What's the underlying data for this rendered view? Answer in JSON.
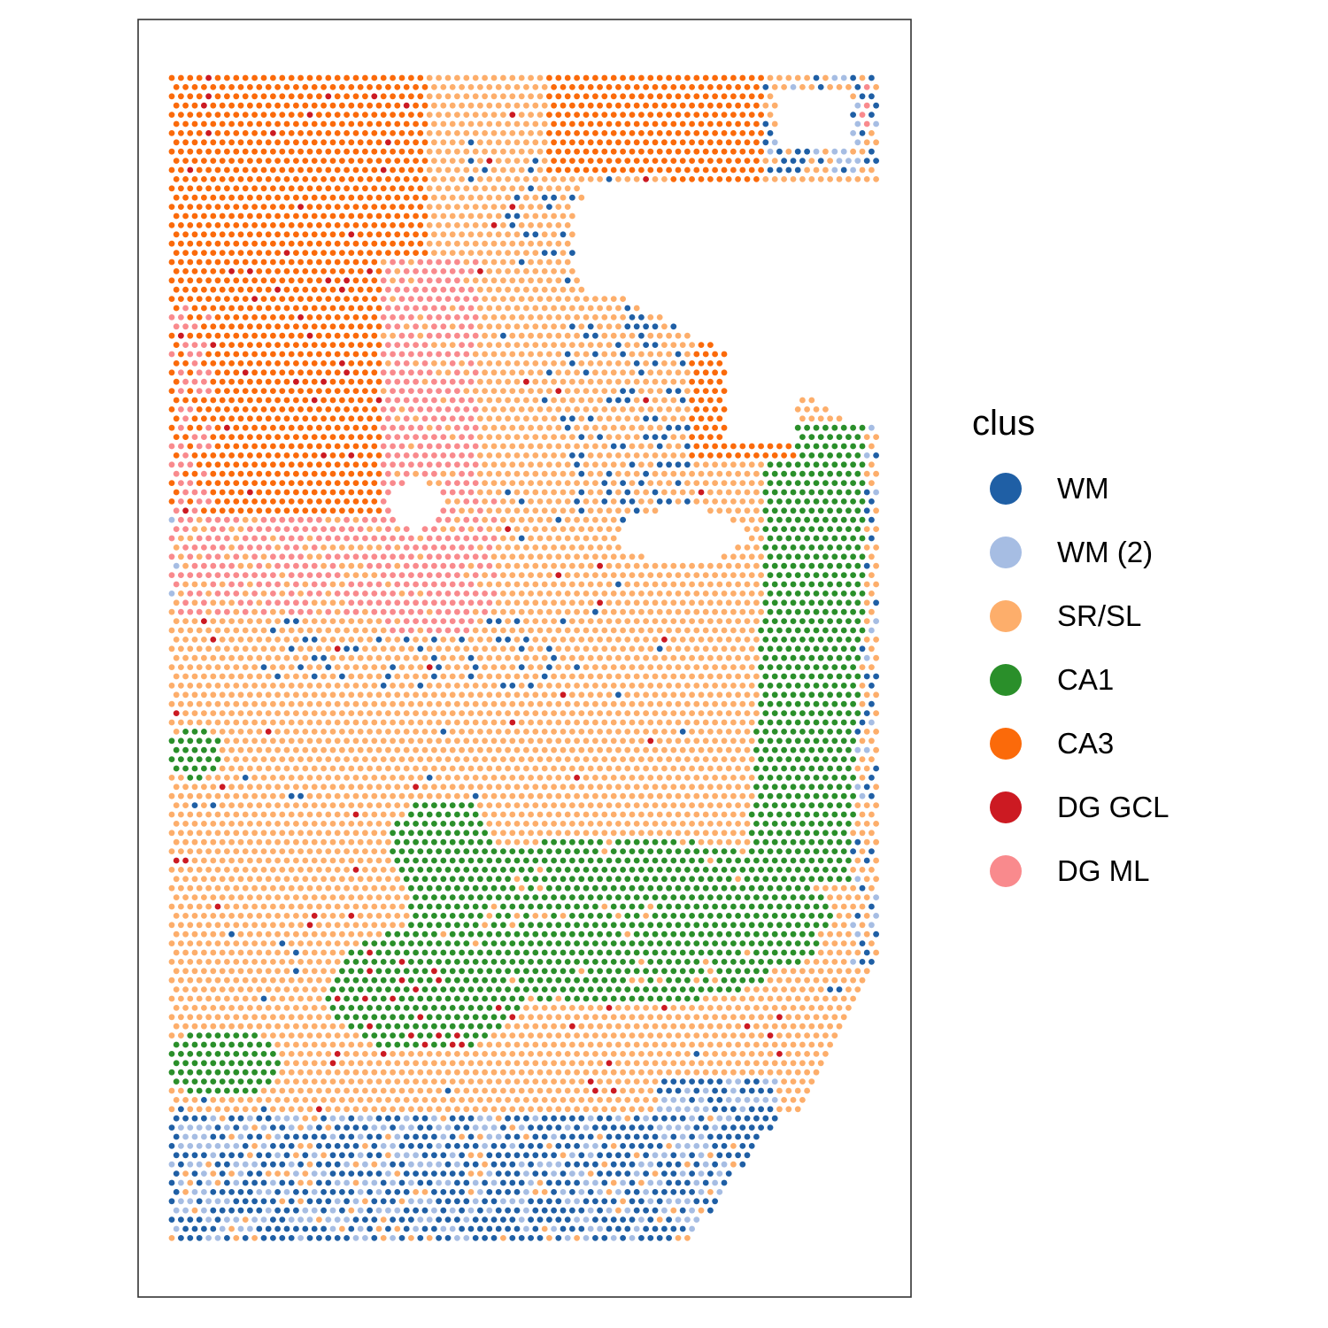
{
  "chart_data": {
    "type": "scatter",
    "title": "",
    "xlabel": "",
    "ylabel": "",
    "grid": false,
    "legend_position": "right",
    "legend": {
      "title": "clus",
      "entries": [
        {
          "label": "WM",
          "color": "#1f5fa5"
        },
        {
          "label": "WM (2)",
          "color": "#a6bde3"
        },
        {
          "label": "SR/SL",
          "color": "#fdae6b"
        },
        {
          "label": "CA1",
          "color": "#2a8f2a"
        },
        {
          "label": "CA3",
          "color": "#fb6a0a"
        },
        {
          "label": "DG GCL",
          "color": "#cc1a22"
        },
        {
          "label": "DG ML",
          "color": "#f98a8d"
        }
      ]
    }
  }
}
